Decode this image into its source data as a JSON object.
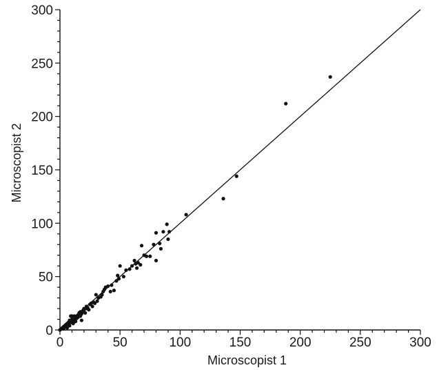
{
  "chart_data": {
    "type": "scatter",
    "xlabel": "Microscopist 1",
    "ylabel": "Microscopist 2",
    "xlim": [
      0,
      300
    ],
    "ylim": [
      0,
      300
    ],
    "x_ticks": [
      0,
      50,
      100,
      150,
      200,
      250,
      300
    ],
    "y_ticks": [
      0,
      50,
      100,
      150,
      200,
      250,
      300
    ],
    "grid": false,
    "legend": "none",
    "reference_line": {
      "from": [
        0,
        0
      ],
      "to": [
        300,
        300
      ]
    },
    "colors": {
      "points": "#111111",
      "line": "#111111",
      "axes": "#111111"
    },
    "series": [
      {
        "points": [
          [
            0,
            0
          ],
          [
            1,
            1
          ],
          [
            2,
            2
          ],
          [
            3,
            3
          ],
          [
            3,
            1
          ],
          [
            4,
            4
          ],
          [
            5,
            3
          ],
          [
            5,
            5
          ],
          [
            6,
            2
          ],
          [
            6,
            6
          ],
          [
            7,
            5
          ],
          [
            7,
            7
          ],
          [
            8,
            4
          ],
          [
            8,
            9
          ],
          [
            9,
            7
          ],
          [
            9,
            13
          ],
          [
            10,
            8
          ],
          [
            10,
            10
          ],
          [
            10,
            13
          ],
          [
            11,
            6
          ],
          [
            11,
            9
          ],
          [
            12,
            10
          ],
          [
            12,
            13
          ],
          [
            13,
            12
          ],
          [
            13,
            8
          ],
          [
            14,
            13
          ],
          [
            14,
            11
          ],
          [
            15,
            14
          ],
          [
            15,
            12
          ],
          [
            16,
            15
          ],
          [
            16,
            16
          ],
          [
            17,
            13
          ],
          [
            17,
            17
          ],
          [
            18,
            15
          ],
          [
            18,
            9
          ],
          [
            19,
            18
          ],
          [
            19,
            17
          ],
          [
            20,
            19
          ],
          [
            20,
            20
          ],
          [
            21,
            16
          ],
          [
            22,
            20
          ],
          [
            22,
            22
          ],
          [
            23,
            21
          ],
          [
            24,
            19
          ],
          [
            25,
            24
          ],
          [
            26,
            25
          ],
          [
            27,
            22
          ],
          [
            28,
            26
          ],
          [
            29,
            25
          ],
          [
            30,
            33
          ],
          [
            31,
            27
          ],
          [
            32,
            30
          ],
          [
            34,
            31
          ],
          [
            35,
            33
          ],
          [
            36,
            36
          ],
          [
            37,
            38
          ],
          [
            38,
            40
          ],
          [
            40,
            41
          ],
          [
            42,
            36
          ],
          [
            43,
            42
          ],
          [
            45,
            37
          ],
          [
            47,
            46
          ],
          [
            48,
            51
          ],
          [
            49,
            48
          ],
          [
            50,
            60
          ],
          [
            53,
            50
          ],
          [
            55,
            56
          ],
          [
            58,
            57
          ],
          [
            60,
            60
          ],
          [
            62,
            65
          ],
          [
            63,
            62
          ],
          [
            64,
            58
          ],
          [
            65,
            63
          ],
          [
            67,
            61
          ],
          [
            68,
            79
          ],
          [
            70,
            70
          ],
          [
            72,
            69
          ],
          [
            75,
            69
          ],
          [
            78,
            80
          ],
          [
            80,
            91
          ],
          [
            80,
            65
          ],
          [
            83,
            81
          ],
          [
            84,
            76
          ],
          [
            86,
            92
          ],
          [
            89,
            99
          ],
          [
            90,
            85
          ],
          [
            91,
            92
          ],
          [
            105,
            108
          ],
          [
            136,
            123
          ],
          [
            147,
            144
          ],
          [
            188,
            212
          ],
          [
            225,
            237
          ]
        ]
      }
    ]
  }
}
